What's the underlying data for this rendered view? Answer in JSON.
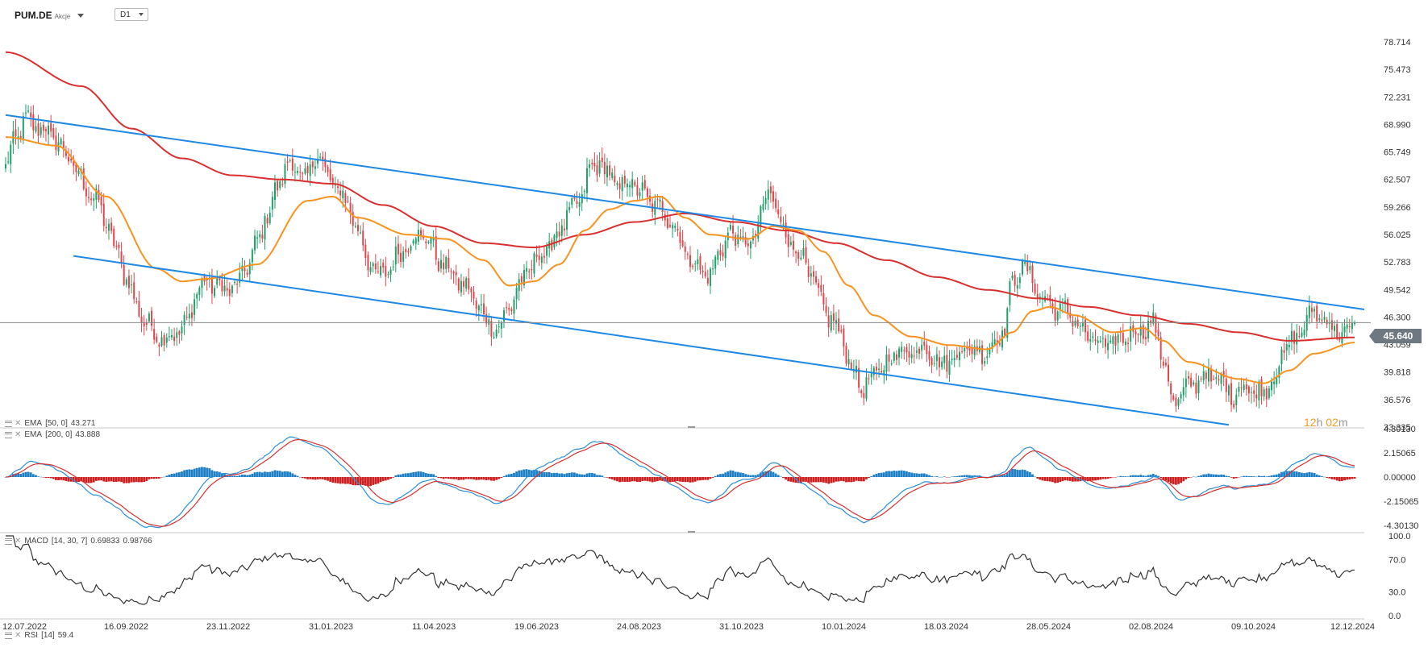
{
  "header": {
    "symbol": "PUM.DE",
    "type": "Akcje",
    "timeframe": "D1"
  },
  "countdown": {
    "hours": "12",
    "h": "h",
    "minutes": "02",
    "m": "m"
  },
  "last_price": "45.640",
  "colors": {
    "up": "#20a06a",
    "down": "#e0474c",
    "ema50": "#f7931e",
    "ema200": "#d9302f",
    "channel": "#1e88e5",
    "macd_hist_pos": "#1f7fc4",
    "macd_hist_neg": "#cc1f1f",
    "macd_line": "#2a8fd8",
    "signal_line": "#d9302f",
    "rsi": "#333333",
    "price_line": "#888888"
  },
  "ema_labels": {
    "ema50": {
      "name": "EMA",
      "params": "[50, 0]",
      "value": "43.271"
    },
    "ema200": {
      "name": "EMA",
      "params": "[200, 0]",
      "value": "43.888"
    }
  },
  "macd_label": {
    "name": "MACD",
    "params": "[14, 30, 7]",
    "value1": "0.69833",
    "value2": "0.98766"
  },
  "rsi_label": {
    "name": "RSI",
    "params": "[14]",
    "value": "59.4"
  },
  "chart_data": {
    "type": "candlestick",
    "start_date": "12.07.2022",
    "x_ticks": [
      "12.07.2022",
      "16.09.2022",
      "23.11.2022",
      "31.01.2023",
      "11.04.2023",
      "19.06.2023",
      "24.08.2023",
      "31.10.2023",
      "10.01.2024",
      "18.03.2024",
      "28.05.2024",
      "02.08.2024",
      "09.10.2024",
      "12.12.2024"
    ],
    "y_ticks": [
      "78.714",
      "75.473",
      "72.231",
      "68.990",
      "65.749",
      "62.507",
      "59.266",
      "56.025",
      "52.783",
      "49.542",
      "46.300",
      "43.059",
      "39.818",
      "36.576",
      "33.335"
    ],
    "ylim": [
      33.335,
      78.714
    ],
    "price_anchors": [
      [
        0,
        64
      ],
      [
        4,
        67.5
      ],
      [
        8,
        69.5
      ],
      [
        12,
        68.8
      ],
      [
        16,
        68.2
      ],
      [
        20,
        67.2
      ],
      [
        24,
        65.5
      ],
      [
        28,
        63.5
      ],
      [
        32,
        61.5
      ],
      [
        36,
        60.0
      ],
      [
        40,
        57.5
      ],
      [
        44,
        54.0
      ],
      [
        48,
        51.0
      ],
      [
        52,
        47.5
      ],
      [
        56,
        45.5
      ],
      [
        60,
        44.2
      ],
      [
        64,
        43.8
      ],
      [
        68,
        44.5
      ],
      [
        72,
        45.5
      ],
      [
        76,
        49.5
      ],
      [
        80,
        50.5
      ],
      [
        84,
        50.0
      ],
      [
        88,
        49.5
      ],
      [
        92,
        50.0
      ],
      [
        96,
        52.5
      ],
      [
        100,
        55.0
      ],
      [
        104,
        58.5
      ],
      [
        108,
        61.5
      ],
      [
        112,
        64.5
      ],
      [
        116,
        63.5
      ],
      [
        120,
        62.5
      ],
      [
        124,
        66.0
      ],
      [
        128,
        62.5
      ],
      [
        132,
        61.5
      ],
      [
        136,
        59.5
      ],
      [
        140,
        56.5
      ],
      [
        144,
        53.0
      ],
      [
        148,
        51.0
      ],
      [
        152,
        52.0
      ],
      [
        156,
        53.5
      ],
      [
        160,
        55.0
      ],
      [
        164,
        56.0
      ],
      [
        168,
        55.5
      ],
      [
        172,
        53.0
      ],
      [
        176,
        52.0
      ],
      [
        180,
        50.5
      ],
      [
        184,
        49.5
      ],
      [
        188,
        47.5
      ],
      [
        192,
        45.5
      ],
      [
        196,
        45.0
      ],
      [
        200,
        47.5
      ],
      [
        204,
        50.0
      ],
      [
        208,
        52.0
      ],
      [
        212,
        53.5
      ],
      [
        216,
        54.5
      ],
      [
        220,
        56.5
      ],
      [
        224,
        58.5
      ],
      [
        228,
        60.0
      ],
      [
        232,
        63.5
      ],
      [
        236,
        64.5
      ],
      [
        240,
        63.0
      ],
      [
        244,
        61.5
      ],
      [
        248,
        62.5
      ],
      [
        252,
        61.0
      ],
      [
        256,
        60.0
      ],
      [
        260,
        59.0
      ],
      [
        264,
        58.0
      ],
      [
        268,
        55.5
      ],
      [
        272,
        53.0
      ],
      [
        276,
        52.0
      ],
      [
        280,
        51.0
      ],
      [
        284,
        54.5
      ],
      [
        288,
        56.0
      ],
      [
        292,
        55.5
      ],
      [
        296,
        54.5
      ],
      [
        300,
        58.5
      ],
      [
        304,
        61.0
      ],
      [
        308,
        57.5
      ],
      [
        312,
        55.0
      ],
      [
        316,
        53.5
      ],
      [
        320,
        51.0
      ],
      [
        324,
        48.0
      ],
      [
        328,
        46.0
      ],
      [
        332,
        44.0
      ],
      [
        336,
        40.5
      ],
      [
        340,
        38.0
      ],
      [
        344,
        38.8
      ],
      [
        348,
        40.5
      ],
      [
        352,
        41.5
      ],
      [
        356,
        42.5
      ],
      [
        360,
        42.0
      ],
      [
        364,
        43.0
      ],
      [
        368,
        42.0
      ],
      [
        372,
        40.5
      ],
      [
        376,
        41.5
      ],
      [
        380,
        42.5
      ],
      [
        384,
        42.5
      ],
      [
        388,
        42.0
      ],
      [
        392,
        43.0
      ],
      [
        396,
        44.5
      ],
      [
        400,
        50.0
      ],
      [
        404,
        52.5
      ],
      [
        408,
        50.5
      ],
      [
        412,
        48.5
      ],
      [
        416,
        47.5
      ],
      [
        420,
        47.0
      ],
      [
        424,
        46.5
      ],
      [
        428,
        44.5
      ],
      [
        432,
        43.5
      ],
      [
        436,
        43.0
      ],
      [
        440,
        43.0
      ],
      [
        444,
        44.0
      ],
      [
        448,
        44.5
      ],
      [
        452,
        45.0
      ],
      [
        456,
        45.5
      ],
      [
        460,
        41.5
      ],
      [
        464,
        36.0
      ],
      [
        468,
        37.5
      ],
      [
        472,
        38.5
      ],
      [
        476,
        39.5
      ],
      [
        480,
        39.0
      ],
      [
        484,
        38.5
      ],
      [
        488,
        37.0
      ],
      [
        492,
        38.5
      ],
      [
        496,
        37.0
      ],
      [
        500,
        38.0
      ],
      [
        504,
        39.0
      ],
      [
        508,
        42.5
      ],
      [
        512,
        43.5
      ],
      [
        516,
        45.5
      ],
      [
        520,
        47.0
      ],
      [
        524,
        46.0
      ],
      [
        528,
        45.0
      ],
      [
        532,
        44.0
      ],
      [
        536,
        45.6
      ]
    ],
    "ema50_anchors": [
      [
        0,
        67.5
      ],
      [
        20,
        66.5
      ],
      [
        40,
        60.5
      ],
      [
        60,
        52.0
      ],
      [
        70,
        50.5
      ],
      [
        80,
        50.8
      ],
      [
        100,
        52.5
      ],
      [
        120,
        60.0
      ],
      [
        130,
        60.5
      ],
      [
        140,
        58.0
      ],
      [
        160,
        56.0
      ],
      [
        175,
        55.5
      ],
      [
        190,
        53.0
      ],
      [
        200,
        50.0
      ],
      [
        210,
        50.5
      ],
      [
        220,
        52.5
      ],
      [
        230,
        56.5
      ],
      [
        240,
        59.0
      ],
      [
        250,
        60.0
      ],
      [
        260,
        60.5
      ],
      [
        270,
        58.0
      ],
      [
        280,
        56.0
      ],
      [
        295,
        55.5
      ],
      [
        305,
        57.0
      ],
      [
        315,
        56.5
      ],
      [
        325,
        54.0
      ],
      [
        335,
        50.0
      ],
      [
        345,
        46.5
      ],
      [
        360,
        44.0
      ],
      [
        375,
        43.0
      ],
      [
        390,
        42.5
      ],
      [
        400,
        44.5
      ],
      [
        408,
        47.0
      ],
      [
        415,
        47.5
      ],
      [
        425,
        46.5
      ],
      [
        440,
        44.5
      ],
      [
        452,
        45.0
      ],
      [
        460,
        43.5
      ],
      [
        470,
        41.0
      ],
      [
        490,
        39.0
      ],
      [
        500,
        38.5
      ],
      [
        510,
        40.0
      ],
      [
        520,
        42.0
      ],
      [
        536,
        43.3
      ]
    ],
    "ema200_anchors": [
      [
        0,
        77.5
      ],
      [
        30,
        73.5
      ],
      [
        50,
        68.5
      ],
      [
        70,
        65.0
      ],
      [
        90,
        63.0
      ],
      [
        110,
        62.5
      ],
      [
        130,
        62.0
      ],
      [
        150,
        59.5
      ],
      [
        170,
        57.0
      ],
      [
        190,
        55.0
      ],
      [
        210,
        54.5
      ],
      [
        230,
        56.0
      ],
      [
        250,
        57.5
      ],
      [
        270,
        58.5
      ],
      [
        290,
        57.5
      ],
      [
        310,
        56.5
      ],
      [
        330,
        55.0
      ],
      [
        350,
        53.0
      ],
      [
        370,
        51.0
      ],
      [
        390,
        49.5
      ],
      [
        410,
        48.5
      ],
      [
        430,
        47.5
      ],
      [
        450,
        46.5
      ],
      [
        470,
        45.5
      ],
      [
        490,
        44.5
      ],
      [
        510,
        43.5
      ],
      [
        536,
        43.9
      ]
    ],
    "channel_upper": {
      "start": [
        0,
        70.1
      ],
      "end": [
        536,
        47.2
      ]
    },
    "channel_lower": {
      "start": [
        26,
        53.5
      ],
      "end": [
        486,
        33.6
      ]
    },
    "macd": {
      "y_ticks": [
        "4.30130",
        "2.15065",
        "0.00000",
        "-2.15065",
        "-4.30130"
      ],
      "ylim": [
        -4.3013,
        4.3013
      ],
      "macd_line": 0.69833,
      "signal_line": 0.98766
    },
    "rsi": {
      "y_ticks": [
        "100.0",
        "70.0",
        "30.0",
        "0.0"
      ],
      "ylim": [
        0,
        100
      ],
      "period": 14,
      "last": 59.4
    }
  }
}
